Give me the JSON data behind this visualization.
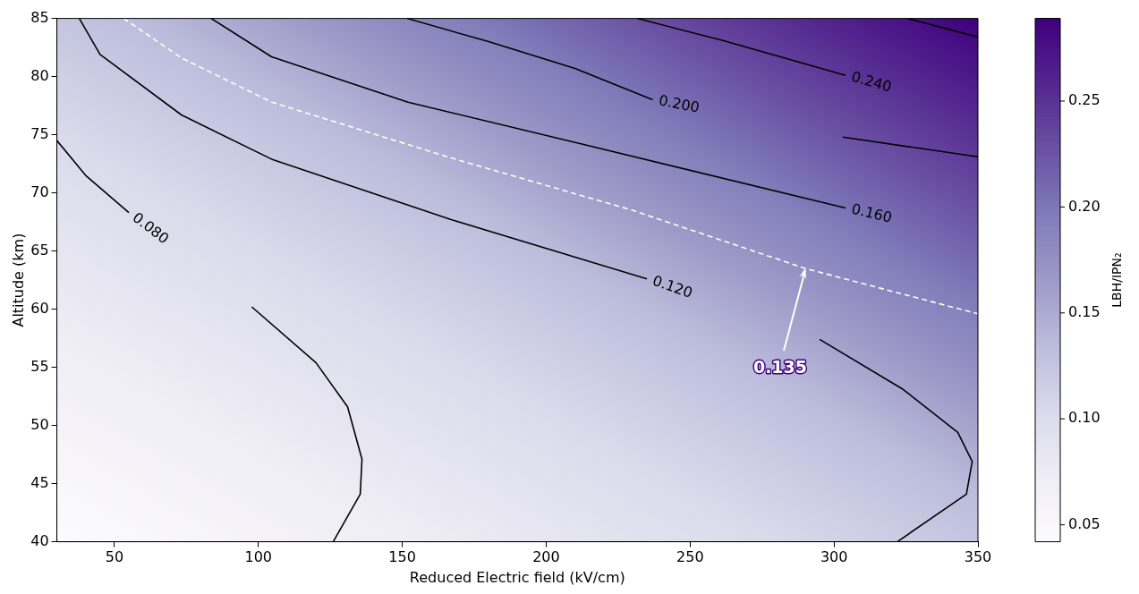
{
  "chart_data": {
    "type": "line",
    "xlabel": "Reduced Electric field (kV/cm)",
    "ylabel": "Altitude (km)",
    "clabel": "LBH/IPN₂",
    "xlim": [
      30,
      350
    ],
    "xticks": [
      50,
      100,
      150,
      200,
      250,
      300,
      350
    ],
    "ylim": [
      40,
      85
    ],
    "yticks": [
      40,
      45,
      50,
      55,
      60,
      65,
      70,
      75,
      80,
      85
    ],
    "clim": [
      0.042,
      0.289
    ],
    "cticks": [
      0.05,
      {
        "value": 0.1,
        "label": "0.10"
      },
      0.15,
      {
        "value": 0.2,
        "label": "0.20"
      },
      0.25
    ],
    "series": [
      {
        "type": "line",
        "name": "0.080",
        "color": "#000000",
        "line_style": "solid",
        "x": [
          30,
          40,
          55,
          75,
          97.7,
          120,
          131,
          136,
          135.4,
          126
        ],
        "values": [
          74.5,
          71.5,
          68.3,
          null,
          60.2,
          55.4,
          51.6,
          47.1,
          44.1,
          40
        ]
      },
      {
        "type": "line",
        "name": "0.120",
        "color": "#000000",
        "line_style": "solid",
        "x": [
          37.8,
          45,
          73.3,
          104.6,
          167,
          235,
          265,
          295,
          324,
          343,
          348,
          346,
          322
        ],
        "values": [
          85,
          81.9,
          76.7,
          72.9,
          67.7,
          62.6,
          null,
          57.4,
          53.1,
          49.4,
          46.9,
          44.1,
          40
        ]
      },
      {
        "type": "line",
        "color": "#ffffff",
        "line_style": "dashed",
        "x": [
          53.2,
          73.3,
          104.6,
          167,
          230,
          290,
          350
        ],
        "values": [
          85,
          81.6,
          77.8,
          73,
          68.5,
          63.5,
          59.6
        ]
      },
      {
        "type": "line",
        "name": "0.160",
        "color": "#000000",
        "line_style": "solid",
        "x": [
          83.6,
          104.6,
          152,
          214,
          304
        ],
        "values": [
          85,
          81.7,
          77.8,
          74.1,
          68.7
        ]
      },
      {
        "type": "line",
        "name": "0.200",
        "color": "#000000",
        "line_style": "solid",
        "x": [
          151.7,
          180,
          210,
          237,
          270,
          303,
          350
        ],
        "values": [
          85,
          83,
          80.7,
          78,
          null,
          74.8,
          73.1
        ]
      },
      {
        "type": "line",
        "name": "0.240",
        "color": "#000000",
        "line_style": "solid",
        "x": [
          231.6,
          261.4,
          304
        ],
        "values": [
          85,
          83.1,
          80.1
        ]
      },
      {
        "type": "line",
        "color": "#000000",
        "line_style": "solid",
        "x": [
          325.6,
          350
        ],
        "values": [
          85,
          83.4
        ]
      }
    ],
    "annotations": [
      {
        "text": "0.135",
        "x": 290,
        "y": 63.5
      }
    ],
    "grid": false,
    "legend": false
  }
}
